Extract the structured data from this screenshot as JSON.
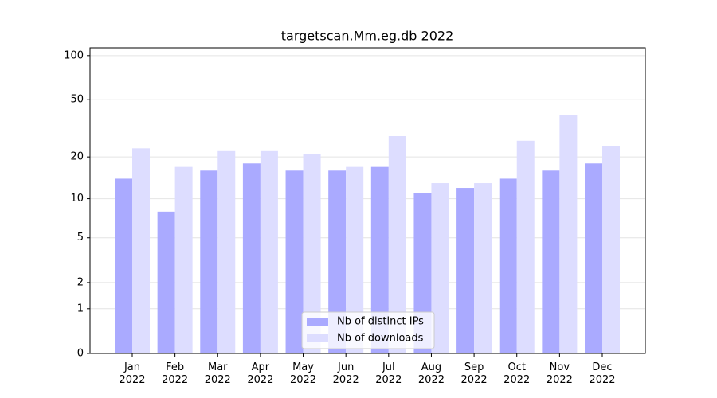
{
  "chart_data": {
    "type": "bar",
    "title": "targetscan.Mm.eg.db 2022",
    "categories": [
      "Jan 2022",
      "Feb 2022",
      "Mar 2022",
      "Apr 2022",
      "May 2022",
      "Jun 2022",
      "Jul 2022",
      "Aug 2022",
      "Sep 2022",
      "Oct 2022",
      "Nov 2022",
      "Dec 2022"
    ],
    "series": [
      {
        "name": "Nb of distinct IPs",
        "color": "#aaaaff",
        "values": [
          14,
          8,
          16,
          18,
          16,
          16,
          17,
          11,
          12,
          14,
          16,
          18
        ]
      },
      {
        "name": "Nb of downloads",
        "color": "#ddddff",
        "values": [
          23,
          17,
          22,
          22,
          21,
          17,
          28,
          13,
          13,
          26,
          39,
          24
        ]
      }
    ],
    "yscale": "log1p",
    "ylim": [
      0,
      113
    ],
    "yticks": [
      0,
      1,
      2,
      5,
      10,
      20,
      50,
      100
    ],
    "grid": true,
    "legend": "lower center"
  }
}
